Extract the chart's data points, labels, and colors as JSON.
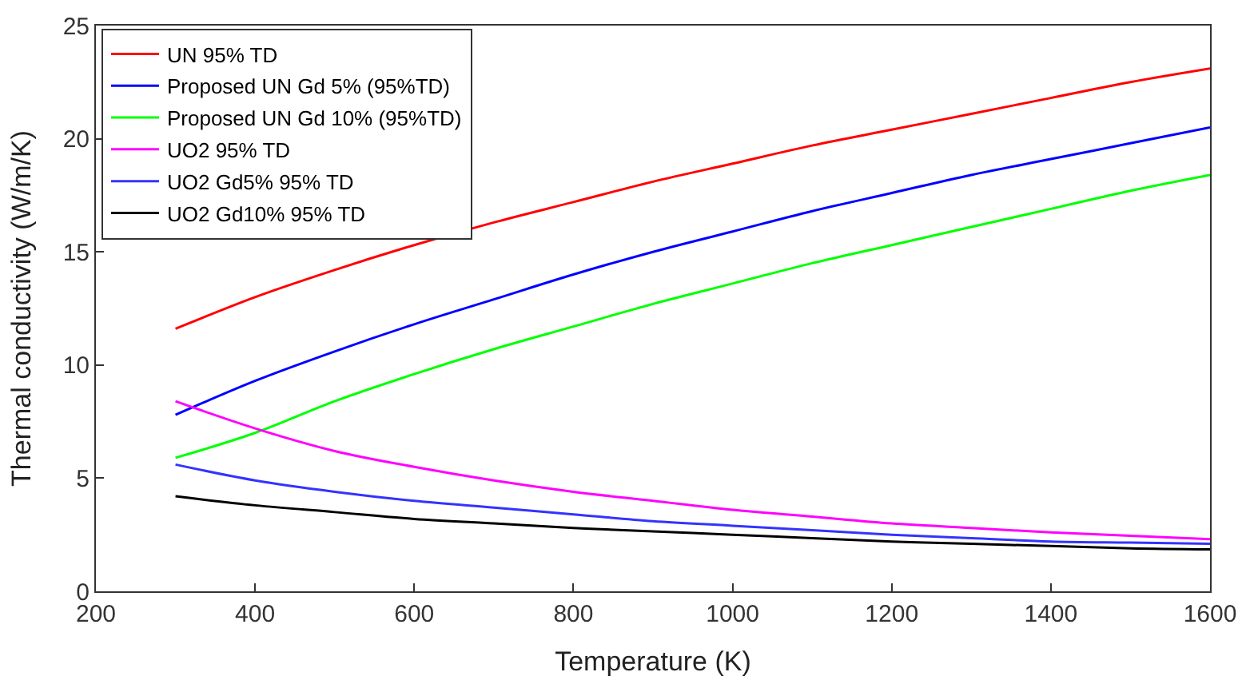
{
  "chart_data": {
    "type": "line",
    "xlabel": "Temperature (K)",
    "ylabel": "Thermal conductivity (W/m/K)",
    "x": [
      300,
      400,
      500,
      600,
      700,
      800,
      900,
      1000,
      1100,
      1200,
      1300,
      1400,
      1500,
      1600
    ],
    "xlim": [
      200,
      1600
    ],
    "xticks": [
      200,
      400,
      600,
      800,
      1000,
      1200,
      1400,
      1600
    ],
    "ylim": [
      0,
      25
    ],
    "yticks": [
      0,
      5,
      10,
      15,
      20,
      25
    ],
    "grid": false,
    "legend": "top left",
    "marker": "none",
    "line_style": "solid",
    "series": [
      {
        "name": "UN 95% TD",
        "color": "#ff0000",
        "values": [
          11.6,
          13.0,
          14.2,
          15.3,
          16.3,
          17.2,
          18.1,
          18.9,
          19.7,
          20.4,
          21.1,
          21.8,
          22.5,
          23.1
        ]
      },
      {
        "name": "Proposed UN Gd 5% (95%TD)",
        "color": "#0000ff",
        "values": [
          7.8,
          9.3,
          10.6,
          11.8,
          12.9,
          14.0,
          15.0,
          15.9,
          16.8,
          17.6,
          18.4,
          19.1,
          19.8,
          20.5
        ]
      },
      {
        "name": "Proposed UN Gd 10% (95%TD)",
        "color": "#00ff00",
        "values": [
          5.9,
          7.0,
          8.4,
          9.6,
          10.7,
          11.7,
          12.7,
          13.6,
          14.5,
          15.3,
          16.1,
          16.9,
          17.7,
          18.4
        ]
      },
      {
        "name": "UO2 95% TD",
        "color": "#ff00ff",
        "values": [
          8.4,
          7.2,
          6.2,
          5.5,
          4.9,
          4.4,
          4.0,
          3.6,
          3.3,
          3.0,
          2.8,
          2.6,
          2.45,
          2.3
        ]
      },
      {
        "name": "UO2 Gd5% 95% TD",
        "color": "#3333ff",
        "values": [
          5.6,
          4.9,
          4.4,
          4.0,
          3.7,
          3.4,
          3.1,
          2.9,
          2.7,
          2.5,
          2.35,
          2.2,
          2.15,
          2.1
        ]
      },
      {
        "name": "UO2 Gd10% 95% TD",
        "color": "#000000",
        "values": [
          4.2,
          3.8,
          3.5,
          3.2,
          3.0,
          2.8,
          2.65,
          2.5,
          2.35,
          2.2,
          2.1,
          2.0,
          1.9,
          1.85
        ]
      }
    ]
  }
}
